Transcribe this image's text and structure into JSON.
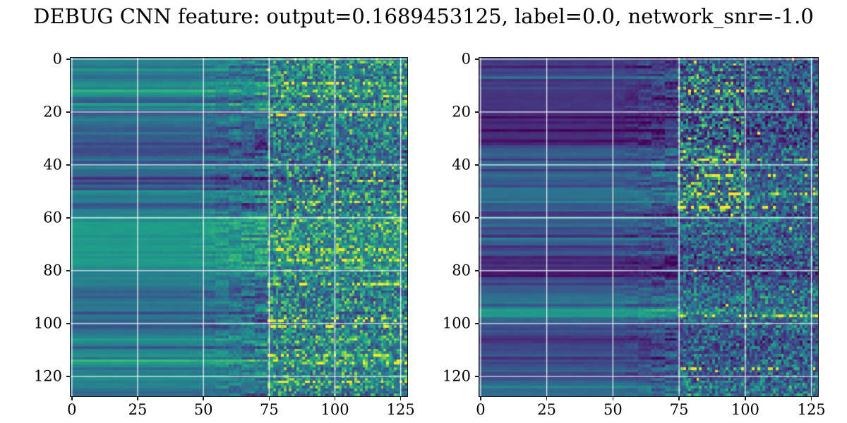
{
  "title": "DEBUG CNN feature: output=0.1689453125, label=0.0, network_snr=-1.0",
  "debug_values": {
    "output": "0.1689453125",
    "label": "0.0",
    "network_snr": "-1.0"
  },
  "figure": {
    "background_color": "#ffffff",
    "text_color": "#000000",
    "spine_color": "#1a1a1a",
    "grid_color": "#ffffff",
    "grid_opacity": 0.9
  },
  "chart_data": [
    {
      "type": "heatmap",
      "panel": "left-feature-map",
      "shape": [
        128,
        128
      ],
      "x_ticks": [
        0,
        25,
        50,
        75,
        100,
        125
      ],
      "y_ticks": [
        0,
        20,
        40,
        60,
        80,
        100,
        120
      ],
      "x_range": [
        -0.5,
        127.5
      ],
      "y_range": [
        127.5,
        -0.5
      ],
      "grid": true,
      "colormap": "viridis",
      "colormap_stops": [
        "#440154",
        "#482878",
        "#3e4989",
        "#31688e",
        "#26828e",
        "#1f9e89",
        "#35b779",
        "#6ece58",
        "#b5de2b",
        "#fde725"
      ],
      "description": "Smooth teal-blue horizontal bands for columns 0-75, transitioning to high-variance speckled noise with bright green/yellow streak rows for columns 75-128.",
      "texture": {
        "seed": 1301,
        "base_start": 0.38,
        "base_min": 0.22,
        "base_max": 0.55,
        "walk_step": 0.15,
        "dark_band_prob": 0.16,
        "dark_band_shift": -0.12,
        "bright_band_prob": 0.1,
        "bright_band_shift": 0.13,
        "smooth_end_col": 44,
        "noise_start": 0.012,
        "transition_end_col": 75,
        "transition_noise": 0.06,
        "right_noise": 0.55,
        "right_base_scale": 0.55,
        "right_base_offset": 0.05,
        "bright_row_prob": 0.1,
        "bright_row_gain": 1.9,
        "outlier_prob": 0.0035
      }
    },
    {
      "type": "heatmap",
      "panel": "right-feature-map",
      "shape": [
        128,
        128
      ],
      "x_ticks": [
        0,
        25,
        50,
        75,
        100,
        125
      ],
      "y_ticks": [
        0,
        20,
        40,
        60,
        80,
        100,
        120
      ],
      "x_range": [
        -0.5,
        127.5
      ],
      "y_range": [
        127.5,
        -0.5
      ],
      "grid": true,
      "colormap": "viridis",
      "colormap_stops": [
        "#440154",
        "#482878",
        "#3e4989",
        "#31688e",
        "#26828e",
        "#1f9e89",
        "#35b779",
        "#6ece58",
        "#b5de2b",
        "#fde725"
      ],
      "description": "Darker indigo-purple horizontal bands for columns 0-75, with a noisy speckled region for columns 75-128 and a bright green/yellow cluster between columns 75-100 in the upper half.",
      "texture": {
        "seed": 9042,
        "base_start": 0.26,
        "base_min": 0.12,
        "base_max": 0.42,
        "walk_step": 0.13,
        "dark_band_prob": 0.18,
        "dark_band_shift": -0.1,
        "bright_band_prob": 0.08,
        "bright_band_shift": 0.15,
        "smooth_end_col": 48,
        "noise_start": 0.012,
        "transition_end_col": 75,
        "transition_noise": 0.05,
        "right_noise": 0.45,
        "right_base_scale": 0.5,
        "right_base_offset": 0.02,
        "bright_row_prob": 0.07,
        "bright_row_gain": 2.2,
        "outlier_prob": 0.002,
        "hot_region": {
          "col_start": 75,
          "col_end": 100,
          "row_start": 2,
          "row_end": 60,
          "gain": 1.6
        }
      }
    }
  ]
}
